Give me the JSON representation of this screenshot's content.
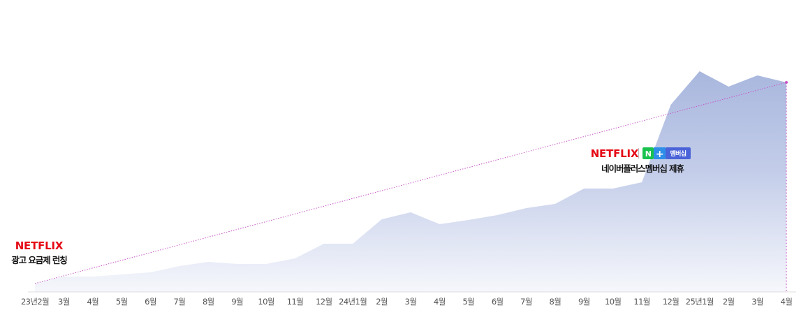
{
  "chart_data": {
    "type": "area",
    "x": [
      "23년2월",
      "3월",
      "4월",
      "5월",
      "6월",
      "7월",
      "8월",
      "9월",
      "10월",
      "11월",
      "12월",
      "24년1월",
      "2월",
      "3월",
      "4월",
      "5월",
      "6월",
      "7월",
      "8월",
      "9월",
      "10월",
      "11월",
      "12월",
      "25년1월",
      "2월",
      "3월",
      "4월"
    ],
    "values": [
      12,
      22,
      22,
      25,
      28,
      37,
      43,
      40,
      40,
      48,
      69,
      69,
      104,
      114,
      97,
      103,
      110,
      120,
      126,
      148,
      148,
      157,
      268,
      316,
      294,
      310,
      300
    ],
    "ylim": [
      0,
      320
    ],
    "grid": false,
    "trend_line": {
      "from_index": 0,
      "to_index": 26
    },
    "annotations": [
      {
        "index": 0,
        "logo": "NETFLIX",
        "text": "광고 요금제 런칭"
      },
      {
        "index": 21,
        "logo": "NETFLIX",
        "badge_letter": "N",
        "badge_plus": "+",
        "badge_text": "멤버십",
        "text": "네이버플러스멤버십 제휴"
      }
    ],
    "colors": {
      "area_top": "#a9b7de",
      "area_bottom": "#f6f7fc",
      "trend": "#c653c6",
      "axis": "#dddddd",
      "logo": "#e50914",
      "badge_n": "#19c24f",
      "badge_plus": "#2f8fe8",
      "badge_text_bg": "#4a63d8"
    }
  }
}
